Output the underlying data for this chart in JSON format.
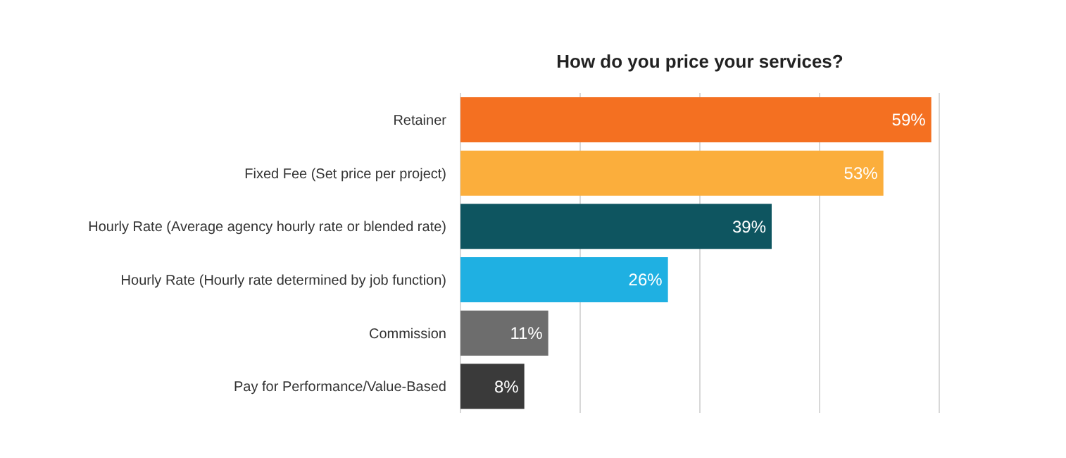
{
  "chart_data": {
    "type": "bar",
    "orientation": "horizontal",
    "title": "How do you price your services?",
    "categories": [
      "Retainer",
      "Fixed Fee (Set price per project)",
      "Hourly Rate (Average agency hourly rate or blended rate)",
      "Hourly Rate (Hourly rate determined by job function)",
      "Commission",
      "Pay for Performance/Value-Based"
    ],
    "values": [
      59,
      53,
      39,
      26,
      11,
      8
    ],
    "value_labels": [
      "59%",
      "53%",
      "39%",
      "26%",
      "11%",
      "8%"
    ],
    "colors": [
      "#f47021",
      "#fbae3c",
      "#0e5560",
      "#1fb0e2",
      "#6d6d6d",
      "#3a3a3a"
    ],
    "xlim": [
      0,
      60
    ],
    "grid": "x",
    "tick_labels": "y"
  }
}
